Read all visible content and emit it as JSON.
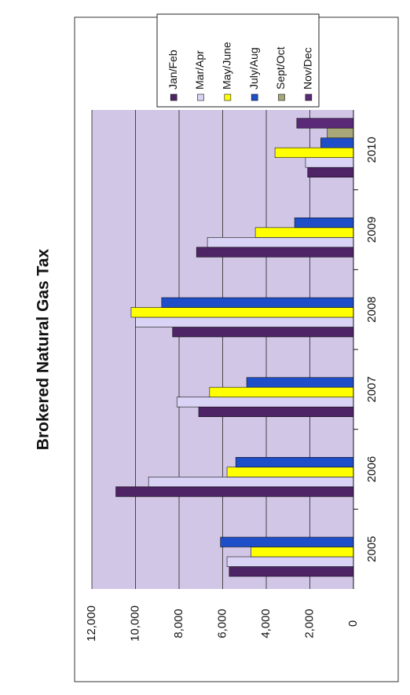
{
  "chart_data": {
    "type": "bar",
    "orientation": "rotated-90-clockwise",
    "title": "Brokered Natural Gas Tax",
    "xlabel": "",
    "ylabel": "",
    "categories": [
      "2005",
      "2006",
      "2007",
      "2008",
      "2009",
      "2010"
    ],
    "y_ticks": [
      "0",
      "2,000",
      "4,000",
      "6,000",
      "8,000",
      "10,000",
      "12,000"
    ],
    "ylim": [
      0,
      12000
    ],
    "grid": true,
    "legend_position": "top-right",
    "series": [
      {
        "name": "Jan/Feb",
        "color": "#4f2466",
        "values": [
          5700,
          10900,
          7100,
          8300,
          7200,
          2100
        ]
      },
      {
        "name": "Mar/Apr",
        "color": "#d9d4f5",
        "values": [
          5800,
          9400,
          8100,
          10000,
          6700,
          2200
        ]
      },
      {
        "name": "May/June",
        "color": "#ffff00",
        "values": [
          4700,
          5800,
          6600,
          10200,
          4500,
          3600
        ]
      },
      {
        "name": "July/Aug",
        "color": "#1f4fc8",
        "values": [
          6100,
          5400,
          4900,
          8800,
          2700,
          1500
        ]
      },
      {
        "name": "Sept/Oct",
        "color": "#a8a77a",
        "values": [
          null,
          null,
          null,
          null,
          null,
          1200
        ]
      },
      {
        "name": "Nov/Dec",
        "color": "#5a2a78",
        "values": [
          null,
          null,
          null,
          null,
          null,
          2600
        ]
      }
    ],
    "colors": {
      "plot_background": "#d2c6e6",
      "gridline": "#222222",
      "bar_outline": "#111111"
    }
  }
}
